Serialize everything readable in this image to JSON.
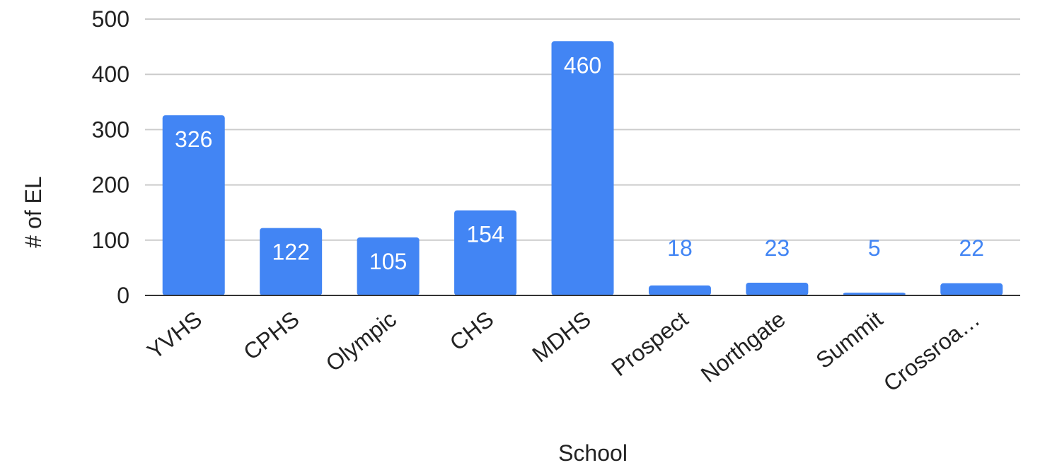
{
  "chart_data": {
    "type": "bar",
    "title": "",
    "xlabel": "School",
    "ylabel": "# of EL",
    "categories": [
      "YVHS",
      "CPHS",
      "Olympic",
      "CHS",
      "MDHS",
      "Prospect",
      "Northgate",
      "Summit",
      "Crossroa…"
    ],
    "values": [
      326,
      122,
      105,
      154,
      460,
      18,
      23,
      5,
      22
    ],
    "ylim": [
      0,
      500
    ],
    "yticks": [
      0,
      100,
      200,
      300,
      400,
      500
    ],
    "grid": true,
    "legend": "none",
    "colors": {
      "bar": "#4285F4",
      "label_inside": "#ffffff",
      "label_outside": "#4285F4",
      "grid": "#cccccc",
      "axis": "#333333",
      "text": "#222222"
    }
  }
}
